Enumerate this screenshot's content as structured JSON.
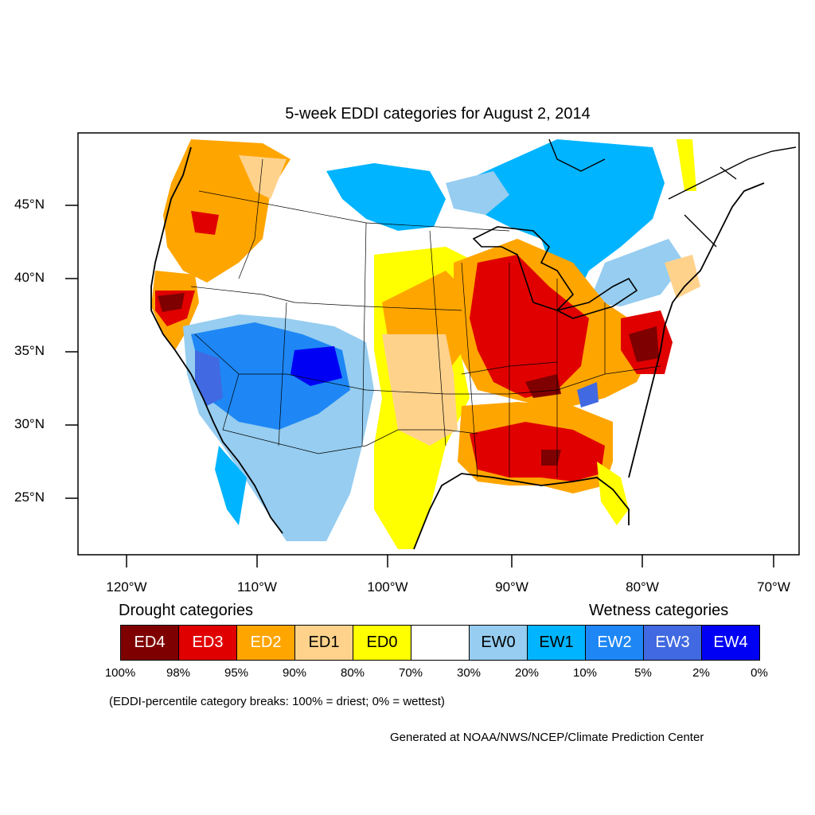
{
  "title": "5-week EDDI categories for August 2, 2014",
  "lat_labels": [
    "45°N",
    "40°N",
    "35°N",
    "30°N",
    "25°N"
  ],
  "lon_labels": [
    "120°W",
    "110°W",
    "100°W",
    "90°W",
    "80°W",
    "70°W"
  ],
  "legend": {
    "drought_heading": "Drought categories",
    "wetness_heading": "Wetness categories",
    "categories": [
      {
        "label": "ED4",
        "color": "#7f0000",
        "text_color": "#ffffff"
      },
      {
        "label": "ED3",
        "color": "#e00000",
        "text_color": "#ffffff"
      },
      {
        "label": "ED2",
        "color": "#ffa500",
        "text_color": "#ffffff"
      },
      {
        "label": "ED1",
        "color": "#ffd28c",
        "text_color": "#000000"
      },
      {
        "label": "ED0",
        "color": "#ffff00",
        "text_color": "#000000"
      },
      {
        "label": "",
        "color": "#ffffff",
        "text_color": "#000000"
      },
      {
        "label": "EW0",
        "color": "#96cdf0",
        "text_color": "#000000"
      },
      {
        "label": "EW1",
        "color": "#00b4ff",
        "text_color": "#000000"
      },
      {
        "label": "EW2",
        "color": "#1e87f5",
        "text_color": "#ffffff"
      },
      {
        "label": "EW3",
        "color": "#4169e1",
        "text_color": "#ffffff"
      },
      {
        "label": "EW4",
        "color": "#0000f5",
        "text_color": "#ffffff"
      }
    ],
    "breaks": [
      "100%",
      "98%",
      "95%",
      "90%",
      "80%",
      "70%",
      "30%",
      "20%",
      "10%",
      "5%",
      "2%",
      "0%"
    ]
  },
  "note": "(EDDI-percentile category breaks: 100% = driest; 0% = wettest)",
  "credit": "Generated at NOAA/NWS/NCEP/Climate Prediction Center"
}
